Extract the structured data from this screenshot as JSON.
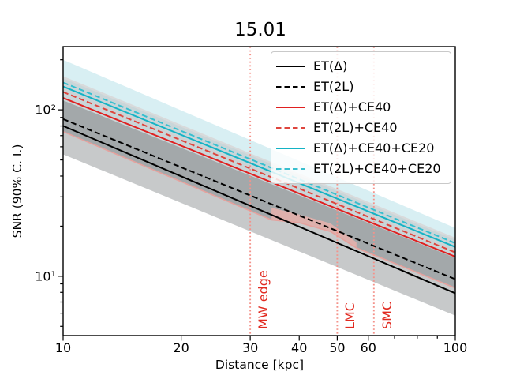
{
  "chart_data": {
    "type": "line",
    "title": "15.01",
    "xlabel": "Distance [kpc]",
    "ylabel": "SNR (90% C. I.)",
    "xscale": "log",
    "yscale": "log",
    "xlim": [
      10,
      100
    ],
    "ylim": [
      4.4,
      240
    ],
    "grid": false,
    "legend_position": "upper right",
    "x_ticks": [
      {
        "v": 10,
        "label": "10"
      },
      {
        "v": 20,
        "label": "20"
      },
      {
        "v": 30,
        "label": "30"
      },
      {
        "v": 40,
        "label": "40"
      },
      {
        "v": 50,
        "label": "50"
      },
      {
        "v": 60,
        "label": "60"
      },
      {
        "v": 100,
        "label": "100"
      }
    ],
    "x_minor_ticks": [
      70,
      80,
      90
    ],
    "y_ticks": [
      {
        "v": 100,
        "label": "10²"
      },
      {
        "v": 10,
        "label": "10¹"
      }
    ],
    "y_minor_ticks": [
      200,
      90,
      80,
      70,
      60,
      50,
      40,
      30,
      20,
      9,
      8,
      7,
      6,
      5
    ],
    "series": [
      {
        "name": "ET(Δ)",
        "color": "#000000",
        "style": "solid",
        "x": [
          10,
          100
        ],
        "snr": [
          80,
          7.9
        ]
      },
      {
        "name": "ET(2L)",
        "color": "#000000",
        "style": "dashed",
        "x": [
          10,
          100
        ],
        "snr": [
          88,
          9.6
        ]
      },
      {
        "name": "ET(Δ)+CE40",
        "color": "#e02020",
        "style": "solid",
        "x": [
          10,
          100
        ],
        "snr": [
          118,
          13.1
        ]
      },
      {
        "name": "ET(2L)+CE40",
        "color": "#de453d",
        "style": "dashed",
        "x": [
          10,
          100
        ],
        "snr": [
          128,
          13.9
        ]
      },
      {
        "name": "ET(Δ)+CE40+CE20",
        "color": "#14b3c5",
        "style": "solid",
        "x": [
          10,
          100
        ],
        "snr": [
          138,
          15.0
        ]
      },
      {
        "name": "ET(2L)+CE40+CE20",
        "color": "#38bfcf",
        "style": "dashed",
        "x": [
          10,
          100
        ],
        "snr": [
          146,
          15.8
        ]
      }
    ],
    "confidence_regions": [
      {
        "name": "cyan-band-upper",
        "fill": "#d8eff3",
        "top": [
          [
            10,
            200
          ],
          [
            100,
            19.5
          ]
        ],
        "bottom": [
          [
            10,
            157
          ],
          [
            100,
            16.8
          ]
        ]
      },
      {
        "name": "overlap-band-mid",
        "fill": "#c9d6d9",
        "top": [
          [
            10,
            157
          ],
          [
            100,
            16.8
          ]
        ],
        "bottom": [
          [
            10,
            114
          ],
          [
            100,
            12.9
          ]
        ]
      },
      {
        "name": "dark-overlap-band",
        "fill": "#a3a8aa",
        "top": [
          [
            10,
            114
          ],
          [
            100,
            12.9
          ]
        ],
        "bottom": [
          [
            10,
            74
          ],
          [
            34,
            21.8
          ],
          [
            40,
            21.0
          ],
          [
            48,
            18.6
          ],
          [
            56,
            14.8
          ],
          [
            100,
            8.5
          ]
        ]
      },
      {
        "name": "gray-band-lower",
        "fill": "#c7c9ca",
        "top": [
          [
            10,
            74
          ],
          [
            34,
            21.8
          ],
          [
            40,
            21.0
          ],
          [
            48,
            18.6
          ],
          [
            56,
            14.8
          ],
          [
            100,
            8.5
          ]
        ],
        "bottom": [
          [
            10,
            54
          ],
          [
            100,
            5.8
          ]
        ]
      }
    ],
    "band_edge_lines": [
      {
        "name": "gray-edge-upper",
        "color": "#d8dadb",
        "width": 2.4,
        "points": [
          [
            10,
            157
          ],
          [
            100,
            16.8
          ]
        ]
      },
      {
        "name": "gray-edge-inner",
        "color": "#cdd2d4",
        "width": 2.0,
        "points": [
          [
            10,
            132
          ],
          [
            100,
            14.2
          ]
        ]
      }
    ],
    "pink_edge_line": {
      "color": "#e5a19d",
      "width": 1.6,
      "points": [
        [
          10,
          74
        ],
        [
          34,
          21.8
        ],
        [
          40,
          21.0
        ],
        [
          48,
          18.6
        ],
        [
          56,
          14.8
        ],
        [
          100,
          8.5
        ]
      ]
    },
    "pink_patch": {
      "fill": "#deb0ac",
      "points": [
        [
          34,
          25.8
        ],
        [
          40,
          23.5
        ],
        [
          48,
          20.8
        ],
        [
          56,
          16.0
        ],
        [
          56,
          14.8
        ],
        [
          48,
          18.6
        ],
        [
          40,
          21.0
        ],
        [
          34,
          21.8
        ]
      ]
    },
    "vlines": [
      {
        "x": 30,
        "label": "MW edge"
      },
      {
        "x": 50,
        "label": "LMC"
      },
      {
        "x": 62,
        "label": "SMC"
      }
    ],
    "vline_color": "#f4928a",
    "vline_label_color": "#e12a20"
  },
  "legend": {
    "items": [
      {
        "label": "ET(Δ)",
        "color": "#000000",
        "style": "solid"
      },
      {
        "label": "ET(2L)",
        "color": "#000000",
        "style": "dashed"
      },
      {
        "label": "ET(Δ)+CE40",
        "color": "#e02020",
        "style": "solid"
      },
      {
        "label": "ET(2L)+CE40",
        "color": "#de453d",
        "style": "dashed"
      },
      {
        "label": "ET(Δ)+CE40+CE20",
        "color": "#14b3c5",
        "style": "solid"
      },
      {
        "label": "ET(2L)+CE40+CE20",
        "color": "#38bfcf",
        "style": "dashed"
      }
    ]
  }
}
